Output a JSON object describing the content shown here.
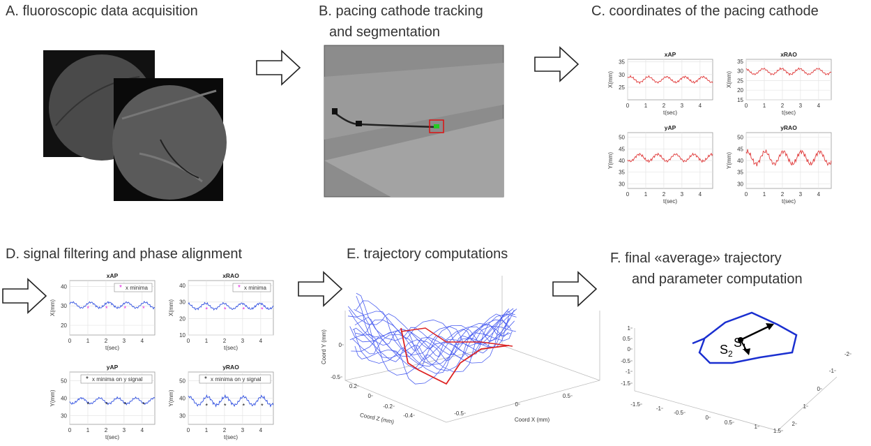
{
  "panels": {
    "a": {
      "title": "A. fluoroscopic data acquisition"
    },
    "b": {
      "title": [
        "B. pacing cathode tracking",
        "and segmentation"
      ]
    },
    "c": {
      "title": "C. coordinates of the pacing cathode",
      "plots": [
        {
          "title": "xAP",
          "ylabel": "X(mm)",
          "xlabel": "t(sec)",
          "xlim": [
            0,
            4.7
          ],
          "xticks": [
            0,
            1,
            2,
            3,
            4
          ],
          "ylim": [
            20,
            36
          ],
          "yticks": [
            25,
            30,
            35
          ]
        },
        {
          "title": "xRAO",
          "ylabel": "X(mm)",
          "xlabel": "t(sec)",
          "xlim": [
            0,
            4.7
          ],
          "xticks": [
            0,
            1,
            2,
            3,
            4
          ],
          "ylim": [
            15,
            36
          ],
          "yticks": [
            15,
            20,
            25,
            30,
            35
          ]
        },
        {
          "title": "yAP",
          "ylabel": "Y(mm)",
          "xlabel": "t(sec)",
          "xlim": [
            0,
            4.7
          ],
          "xticks": [
            0,
            1,
            2,
            3,
            4
          ],
          "ylim": [
            28,
            52
          ],
          "yticks": [
            30,
            35,
            40,
            45,
            50
          ]
        },
        {
          "title": "yRAO",
          "ylabel": "Y(mm)",
          "xlabel": "t(sec)",
          "xlim": [
            0,
            4.7
          ],
          "xticks": [
            0,
            1,
            2,
            3,
            4
          ],
          "ylim": [
            28,
            52
          ],
          "yticks": [
            30,
            35,
            40,
            45,
            50
          ]
        }
      ]
    },
    "d": {
      "title": "D. signal filtering and phase alignment",
      "plots": [
        {
          "title": "xAP",
          "ylabel": "X(mm)",
          "xlabel": "t(sec)",
          "xlim": [
            0,
            4.7
          ],
          "xticks": [
            0,
            1,
            2,
            3,
            4
          ],
          "ylim": [
            15,
            43
          ],
          "yticks": [
            20,
            30,
            40
          ],
          "legend": "x minima"
        },
        {
          "title": "xRAO",
          "ylabel": "X(mm)",
          "xlabel": "t(sec)",
          "xlim": [
            0,
            4.7
          ],
          "xticks": [
            0,
            1,
            2,
            3,
            4
          ],
          "ylim": [
            10,
            43
          ],
          "yticks": [
            10,
            20,
            30,
            40
          ],
          "legend": "x minima"
        },
        {
          "title": "yAP",
          "ylabel": "Y(mm)",
          "xlabel": "t(sec)",
          "xlim": [
            0,
            4.7
          ],
          "xticks": [
            0,
            1,
            2,
            3,
            4
          ],
          "ylim": [
            25,
            55
          ],
          "yticks": [
            30,
            40,
            50
          ],
          "legend": "x minima on y signal"
        },
        {
          "title": "yRAO",
          "ylabel": "Y(mm)",
          "xlabel": "t(sec)",
          "xlim": [
            0,
            4.7
          ],
          "xticks": [
            0,
            1,
            2,
            3,
            4
          ],
          "ylim": [
            25,
            55
          ],
          "yticks": [
            30,
            40,
            50
          ],
          "legend": "x minima on y signal"
        }
      ]
    },
    "e": {
      "title": "E. trajectory computations",
      "ylabel": "Coord Y (mm)",
      "yticks": [
        0,
        -0.5
      ],
      "zlabel": "Coord Z (mm)",
      "zticks": [
        0.2,
        0,
        -0.2,
        -0.4
      ],
      "xlabel": "Coord X (mm)",
      "xticks": [
        -0.5,
        0,
        0.5
      ]
    },
    "f": {
      "title": [
        "F. final «average» trajectory",
        "and parameter computation"
      ],
      "yticks": [
        1,
        0.5,
        0,
        -0.5,
        -1,
        -1.5
      ],
      "xticks": [
        -1.5,
        -1,
        -0.5,
        0,
        0.5,
        1,
        1.5
      ],
      "zticks": [
        -2,
        -1,
        0,
        1,
        2
      ],
      "labels": [
        {
          "symbol": "S",
          "index": "1"
        },
        {
          "symbol": "S",
          "index": "2"
        }
      ]
    }
  }
}
